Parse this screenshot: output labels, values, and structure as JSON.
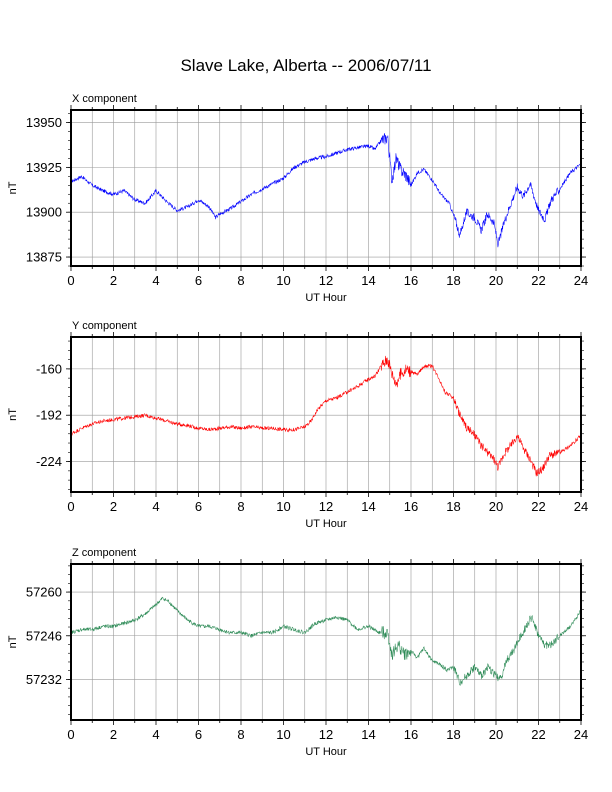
{
  "figure": {
    "title": "Slave Lake, Alberta -- 2006/07/11"
  },
  "chart_data": [
    {
      "type": "line",
      "title": "X component",
      "xlabel": "UT Hour",
      "ylabel": "nT",
      "xlim": [
        0,
        24
      ],
      "ylim": [
        13870,
        13957
      ],
      "xticks": [
        0,
        2,
        4,
        6,
        8,
        10,
        12,
        14,
        16,
        18,
        20,
        22,
        24
      ],
      "yticks": [
        13875,
        13900,
        13925,
        13950
      ],
      "grid": true,
      "color": "#0000ff",
      "series": [
        {
          "x": [
            0,
            0.5,
            1,
            1.5,
            2,
            2.5,
            3,
            3.5,
            4,
            4.5,
            5,
            5.5,
            6,
            6.5,
            6.8,
            7,
            7.5,
            8,
            8.5,
            9,
            9.5,
            10,
            10.5,
            11,
            11.5,
            12,
            12.5,
            13,
            13.5,
            14,
            14.3,
            14.6,
            14.9,
            15.1,
            15.3,
            15.5,
            15.8,
            16,
            16.3,
            16.6,
            17,
            17.4,
            17.8,
            18.1,
            18.3,
            18.6,
            19,
            19.3,
            19.6,
            19.9,
            20.1,
            20.4,
            20.7,
            21,
            21.3,
            21.6,
            22,
            22.3,
            22.6,
            23,
            23.5,
            24
          ],
          "y": [
            13917,
            13920,
            13915,
            13912,
            13910,
            13912,
            13907,
            13905,
            13912,
            13906,
            13901,
            13903,
            13907,
            13903,
            13897,
            13899,
            13902,
            13906,
            13910,
            13913,
            13916,
            13919,
            13925,
            13928,
            13930,
            13931,
            13933,
            13935,
            13936,
            13937,
            13935,
            13940,
            13942,
            13918,
            13930,
            13924,
            13920,
            13915,
            13922,
            13924,
            13918,
            13910,
            13905,
            13895,
            13887,
            13900,
            13897,
            13890,
            13899,
            13894,
            13882,
            13895,
            13905,
            13914,
            13909,
            13916,
            13901,
            13896,
            13907,
            13913,
            13922,
            13927
          ]
        }
      ]
    },
    {
      "type": "line",
      "title": "Y component",
      "xlabel": "UT Hour",
      "ylabel": "nT",
      "xlim": [
        0,
        24
      ],
      "ylim": [
        -245,
        -138
      ],
      "xticks": [
        0,
        2,
        4,
        6,
        8,
        10,
        12,
        14,
        16,
        18,
        20,
        22,
        24
      ],
      "yticks": [
        -160,
        -192,
        -224
      ],
      "grid": true,
      "color": "#ff0000",
      "series": [
        {
          "x": [
            0,
            0.5,
            1,
            1.5,
            2,
            2.5,
            3,
            3.5,
            4,
            4.5,
            5,
            5.5,
            6,
            6.5,
            7,
            7.5,
            8,
            8.5,
            9,
            9.5,
            10,
            10.5,
            11,
            11.3,
            11.6,
            12,
            12.5,
            13,
            13.5,
            14,
            14.3,
            14.6,
            14.9,
            15.1,
            15.3,
            15.5,
            15.8,
            16,
            16.3,
            16.6,
            17,
            17.3,
            17.6,
            18,
            18.3,
            18.6,
            19,
            19.3,
            19.6,
            19.9,
            20.1,
            20.4,
            20.7,
            21,
            21.3,
            21.6,
            21.9,
            22.2,
            22.5,
            23,
            23.5,
            24
          ],
          "y": [
            -205,
            -201,
            -198,
            -196,
            -195,
            -194,
            -193,
            -192,
            -194,
            -196,
            -198,
            -199,
            -201,
            -202,
            -201,
            -200,
            -201,
            -200,
            -201,
            -201,
            -202,
            -202,
            -200,
            -196,
            -188,
            -182,
            -180,
            -176,
            -172,
            -167,
            -165,
            -158,
            -153,
            -163,
            -170,
            -164,
            -160,
            -162,
            -164,
            -158,
            -158,
            -166,
            -176,
            -180,
            -192,
            -200,
            -206,
            -213,
            -218,
            -222,
            -228,
            -218,
            -213,
            -206,
            -215,
            -222,
            -232,
            -229,
            -220,
            -218,
            -213,
            -206
          ]
        }
      ]
    },
    {
      "type": "line",
      "title": "Z component",
      "xlabel": "UT Hour",
      "ylabel": "nT",
      "xlim": [
        0,
        24
      ],
      "ylim": [
        57219,
        57269
      ],
      "xticks": [
        0,
        2,
        4,
        6,
        8,
        10,
        12,
        14,
        16,
        18,
        20,
        22,
        24
      ],
      "yticks": [
        57260,
        57246,
        57232
      ],
      "grid": true,
      "color": "#2e8b57",
      "series": [
        {
          "x": [
            0,
            0.5,
            1,
            1.5,
            2,
            2.5,
            3,
            3.5,
            4,
            4.3,
            4.6,
            5,
            5.5,
            6,
            6.5,
            7,
            7.5,
            8,
            8.5,
            9,
            9.5,
            10,
            10.5,
            11,
            11.5,
            12,
            12.5,
            13,
            13.5,
            14,
            14.5,
            14.9,
            15.1,
            15.4,
            15.7,
            16,
            16.3,
            16.6,
            17,
            17.3,
            17.7,
            18,
            18.3,
            18.6,
            19,
            19.3,
            19.6,
            19.9,
            20.2,
            20.5,
            20.8,
            21.1,
            21.4,
            21.7,
            22,
            22.3,
            22.6,
            23,
            23.5,
            24
          ],
          "y": [
            57247,
            57248,
            57248,
            57249,
            57249,
            57250,
            57251,
            57253,
            57256,
            57258,
            57257,
            57254,
            57251,
            57249,
            57249,
            57248,
            57247,
            57247,
            57246,
            57247,
            57247,
            57249,
            57248,
            57247,
            57250,
            57251,
            57252,
            57251,
            57248,
            57249,
            57247,
            57247,
            57240,
            57243,
            57240,
            57241,
            57239,
            57242,
            57238,
            57237,
            57235,
            57236,
            57231,
            57233,
            57236,
            57233,
            57236,
            57234,
            57232,
            57238,
            57241,
            57245,
            57249,
            57252,
            57246,
            57243,
            57243,
            57246,
            57249,
            57254
          ]
        }
      ]
    }
  ]
}
